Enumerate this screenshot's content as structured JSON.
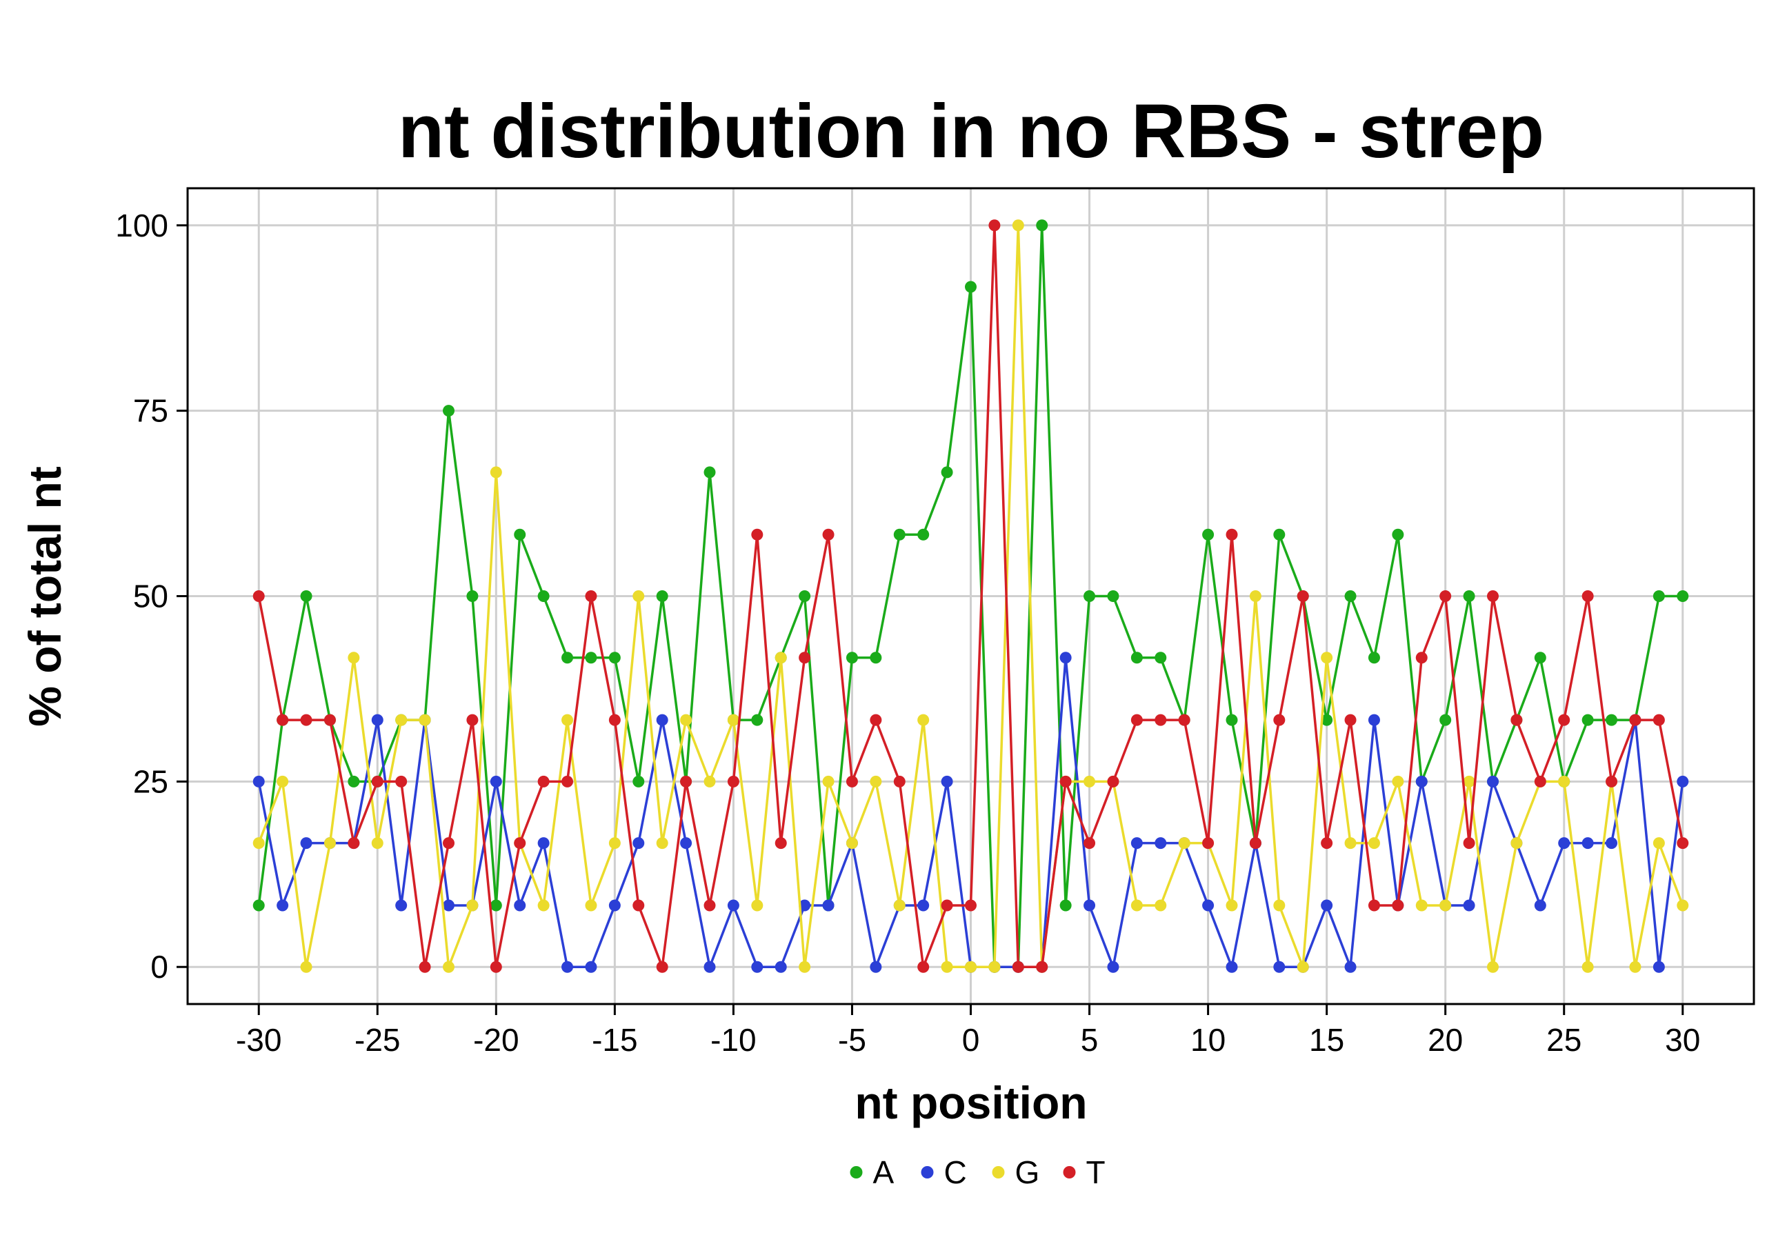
{
  "chart_data": {
    "type": "line",
    "title": "nt distribution in no RBS - strep",
    "xlabel": "nt position",
    "ylabel": "% of total nt",
    "xlim": [
      -33,
      33
    ],
    "ylim": [
      -5,
      105
    ],
    "xticks": [
      -30,
      -25,
      -20,
      -15,
      -10,
      -5,
      0,
      5,
      10,
      15,
      20,
      25,
      30
    ],
    "yticks": [
      0,
      25,
      50,
      75,
      100
    ],
    "grid": true,
    "legend_position": "bottom",
    "x": [
      -30,
      -29,
      -28,
      -27,
      -26,
      -25,
      -24,
      -23,
      -22,
      -21,
      -20,
      -19,
      -18,
      -17,
      -16,
      -15,
      -14,
      -13,
      -12,
      -11,
      -10,
      -9,
      -8,
      -7,
      -6,
      -5,
      -4,
      -3,
      -2,
      -1,
      0,
      1,
      2,
      3,
      4,
      5,
      6,
      7,
      8,
      9,
      10,
      11,
      12,
      13,
      14,
      15,
      16,
      17,
      18,
      19,
      20,
      21,
      22,
      23,
      24,
      25,
      26,
      27,
      28,
      29,
      30
    ],
    "series": [
      {
        "name": "A",
        "color": "#1aab1a",
        "values": [
          8.3,
          33.3,
          50,
          33.3,
          25,
          25,
          33.3,
          33.3,
          75,
          50,
          8.3,
          58.3,
          50,
          41.7,
          41.7,
          41.7,
          25,
          50,
          25,
          66.7,
          33.3,
          33.3,
          41.7,
          50,
          8.3,
          41.7,
          41.7,
          58.3,
          58.3,
          66.7,
          91.7,
          0,
          0,
          100,
          8.3,
          50,
          50,
          41.7,
          41.7,
          33.3,
          58.3,
          33.3,
          16.7,
          58.3,
          50,
          33.3,
          50,
          41.7,
          58.3,
          25,
          33.3,
          50,
          25,
          33.3,
          41.7,
          25,
          33.3,
          33.3,
          33.3,
          50,
          50
        ]
      },
      {
        "name": "C",
        "color": "#2b3fd6",
        "values": [
          25,
          8.3,
          16.7,
          16.7,
          16.7,
          33.3,
          8.3,
          33.3,
          8.3,
          8.3,
          25,
          8.3,
          16.7,
          0,
          0,
          8.3,
          16.7,
          33.3,
          16.7,
          0,
          8.3,
          0,
          0,
          8.3,
          8.3,
          16.7,
          0,
          8.3,
          8.3,
          25,
          0,
          0,
          0,
          0,
          41.7,
          8.3,
          0,
          16.7,
          16.7,
          16.7,
          8.3,
          0,
          16.7,
          0,
          0,
          8.3,
          0,
          33.3,
          8.3,
          25,
          8.3,
          8.3,
          25,
          16.7,
          8.3,
          16.7,
          16.7,
          16.7,
          33.3,
          0,
          25
        ]
      },
      {
        "name": "G",
        "color": "#ebdb2c",
        "values": [
          16.7,
          25,
          0,
          16.7,
          41.7,
          16.7,
          33.3,
          33.3,
          0,
          8.3,
          66.7,
          16.7,
          8.3,
          33.3,
          8.3,
          16.7,
          50,
          16.7,
          33.3,
          25,
          33.3,
          8.3,
          41.7,
          0,
          25,
          16.7,
          25,
          8.3,
          33.3,
          0,
          0,
          0,
          100,
          0,
          25,
          25,
          25,
          8.3,
          8.3,
          16.7,
          16.7,
          8.3,
          50,
          8.3,
          0,
          41.7,
          16.7,
          16.7,
          25,
          8.3,
          8.3,
          25,
          0,
          16.7,
          25,
          25,
          0,
          25,
          0,
          16.7,
          8.3
        ]
      },
      {
        "name": "T",
        "color": "#d41f26",
        "values": [
          50,
          33.3,
          33.3,
          33.3,
          16.7,
          25,
          25,
          0,
          16.7,
          33.3,
          0,
          16.7,
          25,
          25,
          50,
          33.3,
          8.3,
          0,
          25,
          8.3,
          25,
          58.3,
          16.7,
          41.7,
          58.3,
          25,
          33.3,
          25,
          0,
          8.3,
          8.3,
          100,
          0,
          0,
          25,
          16.7,
          25,
          33.3,
          33.3,
          33.3,
          16.7,
          58.3,
          16.7,
          33.3,
          50,
          16.7,
          33.3,
          8.3,
          8.3,
          41.7,
          50,
          16.7,
          50,
          33.3,
          25,
          33.3,
          50,
          25,
          33.3,
          33.3,
          16.7
        ]
      }
    ]
  }
}
